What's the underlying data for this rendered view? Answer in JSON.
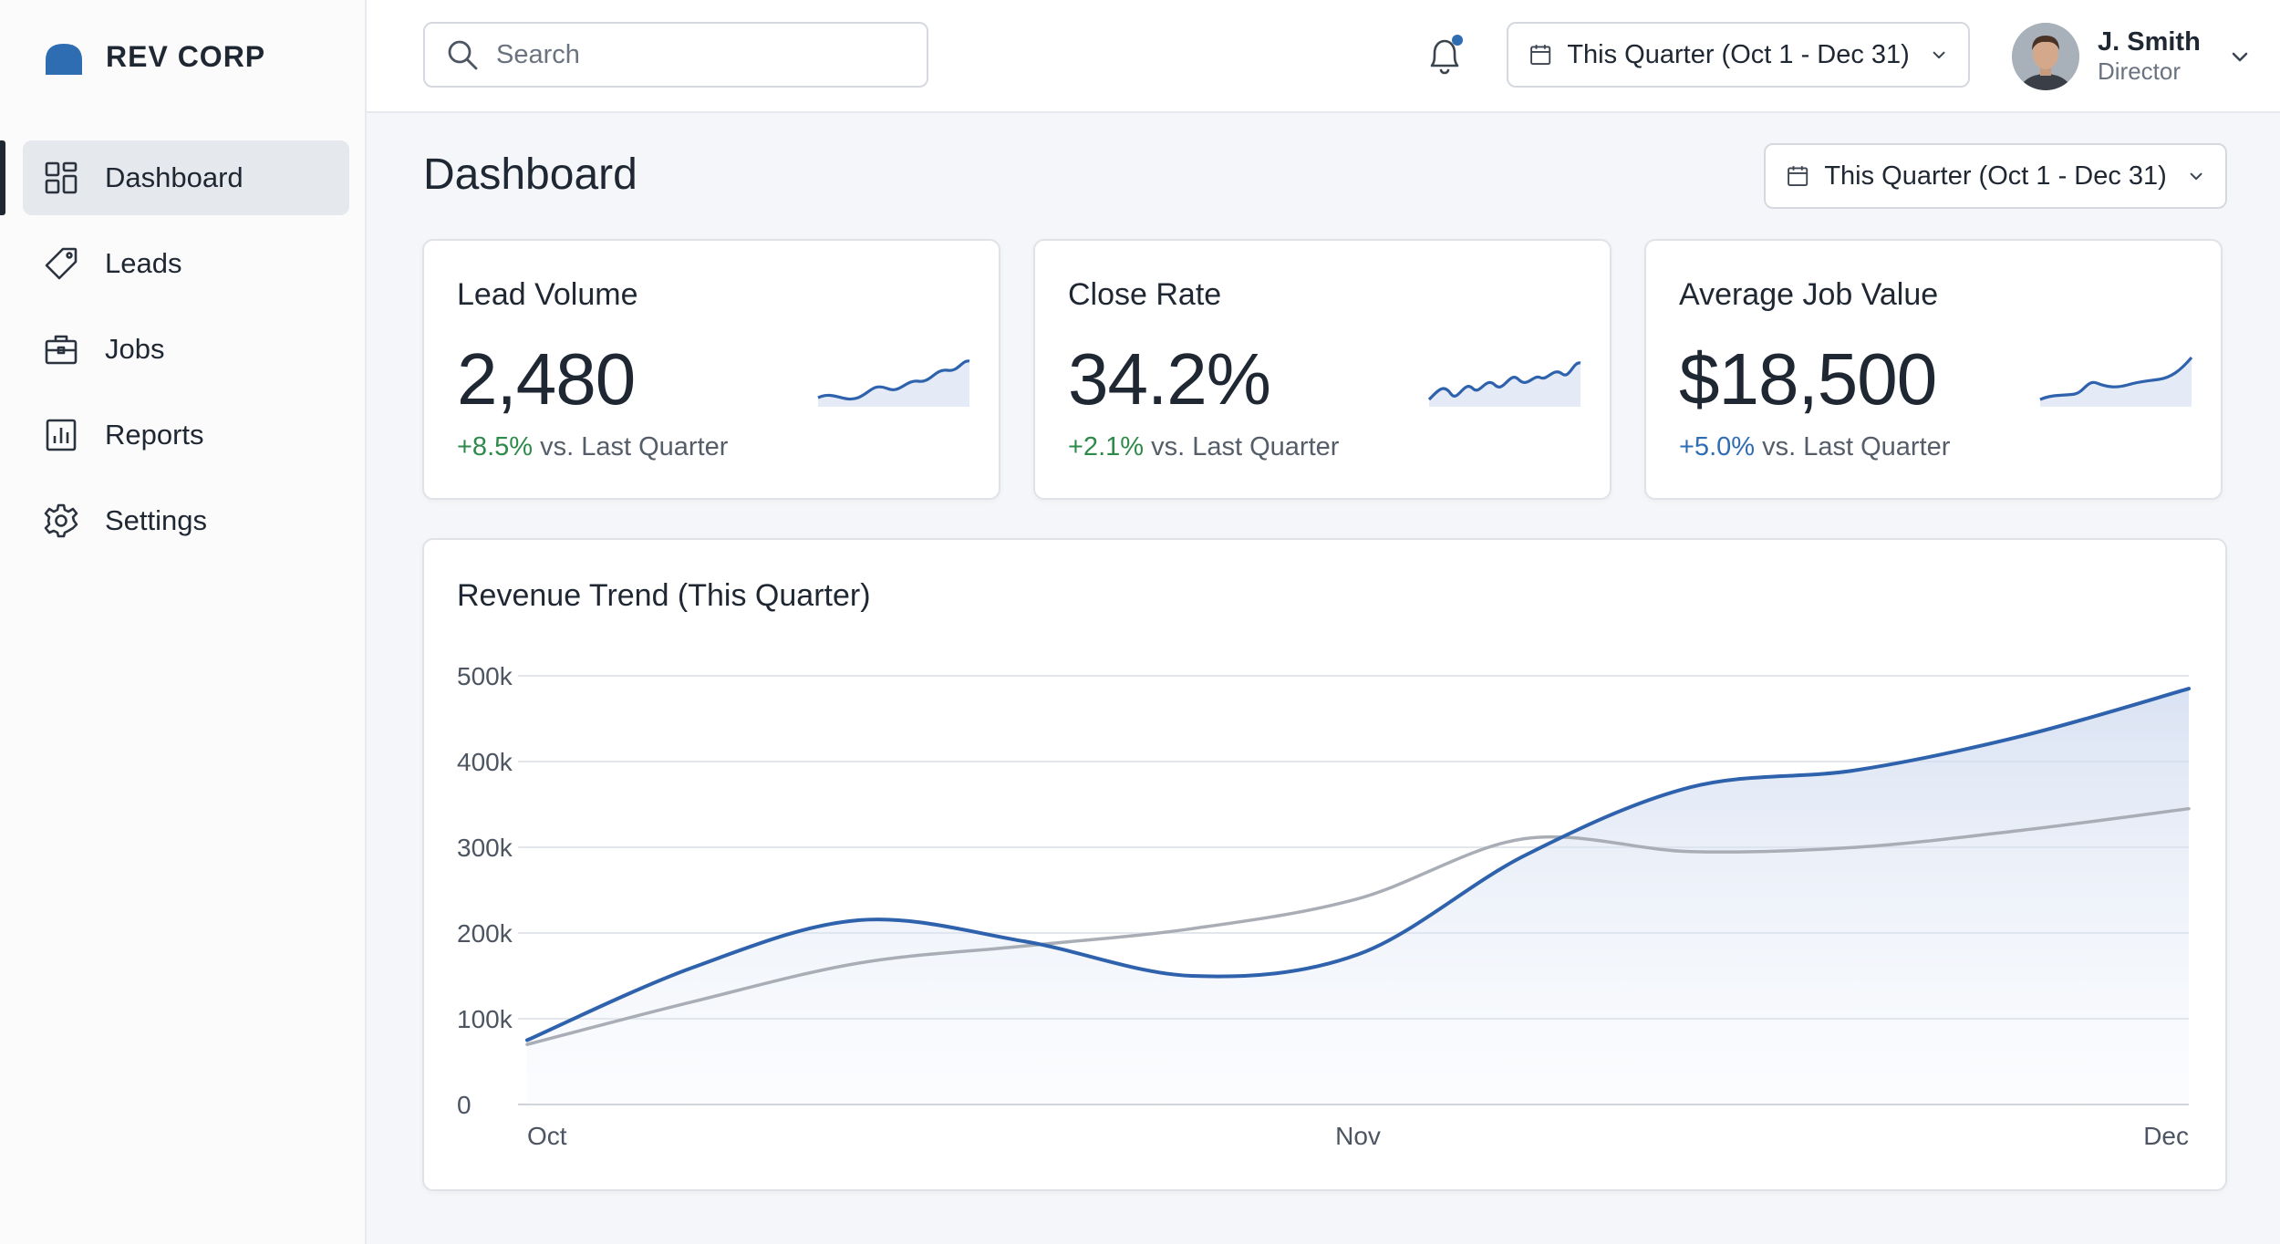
{
  "brand": {
    "name": "REV CORP",
    "accent": "#2f6db3"
  },
  "sidebar": {
    "items": [
      {
        "label": "Dashboard",
        "icon": "dashboard-grid-icon",
        "active": true
      },
      {
        "label": "Leads",
        "icon": "tag-icon",
        "active": false
      },
      {
        "label": "Jobs",
        "icon": "briefcase-icon",
        "active": false
      },
      {
        "label": "Reports",
        "icon": "bar-chart-icon",
        "active": false
      },
      {
        "label": "Settings",
        "icon": "gear-icon",
        "active": false
      }
    ]
  },
  "topbar": {
    "search": {
      "placeholder": "Search",
      "value": ""
    },
    "notifications": {
      "icon": "bell-icon",
      "has_unread": true
    },
    "date_range": "This Quarter (Oct 1 - Dec 31)",
    "user": {
      "name": "J. Smith",
      "role": "Director"
    }
  },
  "page": {
    "title": "Dashboard",
    "date_range": "This Quarter (Oct 1 - Dec 31)"
  },
  "kpis": [
    {
      "title": "Lead Volume",
      "value": "2,480",
      "change": "+8.5%",
      "change_text": "vs. Last Quarter",
      "change_color": "#2e8a4a"
    },
    {
      "title": "Close Rate",
      "value": "34.2%",
      "change": "+2.1%",
      "change_text": "vs. Last Quarter",
      "change_color": "#2e8a4a"
    },
    {
      "title": "Average Job Value",
      "value": "$18,500",
      "change": "+5.0%",
      "change_text": "vs. Last Quarter",
      "change_color": "#2f6db3"
    }
  ],
  "chart": {
    "title": "Revenue Trend (This Quarter)"
  },
  "chart_data": {
    "type": "line",
    "title": "Revenue Trend (This Quarter)",
    "x_ticks": [
      "Oct",
      "Nov",
      "Dec"
    ],
    "y_ticks": [
      "0",
      "100k",
      "200k",
      "300k",
      "400k",
      "500k"
    ],
    "ylim": [
      0,
      500000
    ],
    "grid": true,
    "x": [
      0,
      0.1,
      0.2,
      0.3,
      0.4,
      0.5,
      0.6,
      0.7,
      0.8,
      0.9,
      1.0
    ],
    "series": [
      {
        "color": "#2f62ad",
        "area": true,
        "values": [
          75000,
          160000,
          215000,
          190000,
          150000,
          175000,
          290000,
          370000,
          390000,
          430000,
          485000
        ]
      },
      {
        "color": "#a9adb5",
        "area": false,
        "values": [
          70000,
          120000,
          165000,
          185000,
          205000,
          240000,
          310000,
          295000,
          300000,
          320000,
          345000
        ]
      }
    ]
  }
}
